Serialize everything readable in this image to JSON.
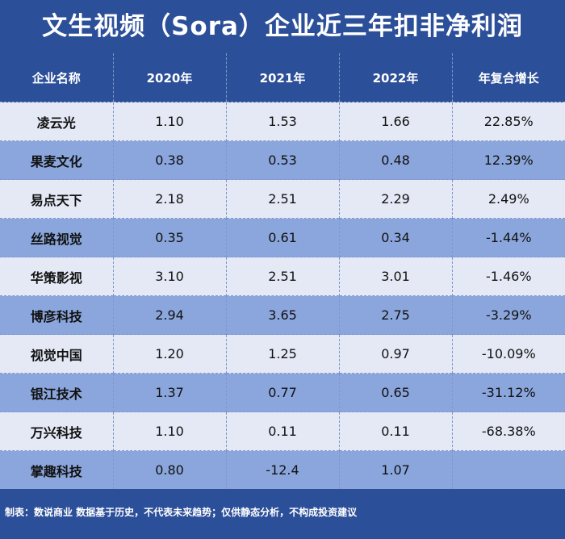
{
  "title": "文生视频（Sora）企业近三年扣非净利润",
  "footer": "制表：数说商业 数据基于历史，不代表未来趋势；仅供静态分析，不构成投资建议",
  "colors": {
    "background": "#2c4f99",
    "row_light": "#e4e9f5",
    "row_dark": "#8aa6dc"
  },
  "chart_data": {
    "type": "table",
    "title": "文生视频（Sora）企业近三年扣非净利润",
    "columns": [
      "企业名称",
      "2020年",
      "2021年",
      "2022年",
      "年复合增长"
    ],
    "rows": [
      [
        "凌云光",
        "1.10",
        "1.53",
        "1.66",
        "22.85%"
      ],
      [
        "果麦文化",
        "0.38",
        "0.53",
        "0.48",
        "12.39%"
      ],
      [
        "易点天下",
        "2.18",
        "2.51",
        "2.29",
        "2.49%"
      ],
      [
        "丝路视觉",
        "0.35",
        "0.61",
        "0.34",
        "-1.44%"
      ],
      [
        "华策影视",
        "3.10",
        "2.51",
        "3.01",
        "-1.46%"
      ],
      [
        "博彦科技",
        "2.94",
        "3.65",
        "2.75",
        "-3.29%"
      ],
      [
        "视觉中国",
        "1.20",
        "1.25",
        "0.97",
        "-10.09%"
      ],
      [
        "银江技术",
        "1.37",
        "0.77",
        "0.65",
        "-31.12%"
      ],
      [
        "万兴科技",
        "1.10",
        "0.11",
        "0.11",
        "-68.38%"
      ],
      [
        "掌趣科技",
        "0.80",
        "-12.4",
        "1.07",
        ""
      ]
    ]
  }
}
